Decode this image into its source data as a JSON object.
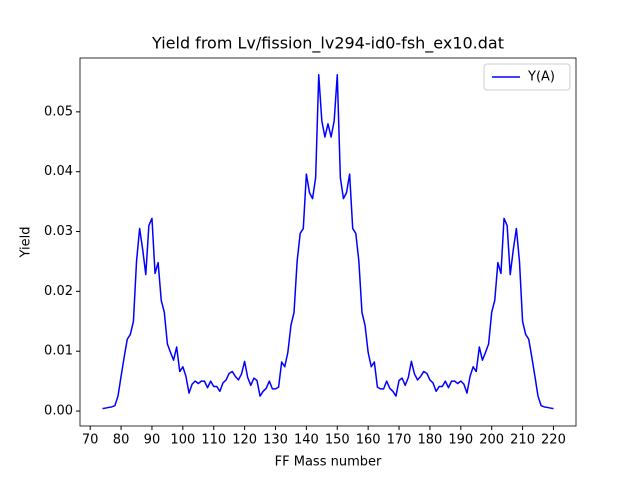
{
  "chart_data": {
    "type": "line",
    "title": "Yield from  Lv/fission_lv294-id0-fsh_ex10.dat",
    "xlabel": "FF Mass number",
    "ylabel": "Yield",
    "x": [
      74,
      75,
      76,
      77,
      78,
      79,
      80,
      81,
      82,
      83,
      84,
      85,
      86,
      87,
      88,
      89,
      90,
      91,
      92,
      93,
      94,
      95,
      96,
      97,
      98,
      99,
      100,
      101,
      102,
      103,
      104,
      105,
      106,
      107,
      108,
      109,
      110,
      111,
      112,
      113,
      114,
      115,
      116,
      117,
      118,
      119,
      120,
      121,
      122,
      123,
      124,
      125,
      126,
      127,
      128,
      129,
      130,
      131,
      132,
      133,
      134,
      135,
      136,
      137,
      138,
      139,
      140,
      141,
      142,
      143,
      144,
      145,
      146,
      147,
      148,
      149,
      150,
      151,
      152,
      153,
      154,
      155,
      156,
      157,
      158,
      159,
      160,
      161,
      162,
      163,
      164,
      165,
      166,
      167,
      168,
      169,
      170,
      171,
      172,
      173,
      174,
      175,
      176,
      177,
      178,
      179,
      180,
      181,
      182,
      183,
      184,
      185,
      186,
      187,
      188,
      189,
      190,
      191,
      192,
      193,
      194,
      195,
      196,
      197,
      198,
      199,
      200,
      201,
      202,
      203,
      204,
      205,
      206,
      207,
      208,
      209,
      210,
      211,
      212,
      213,
      214,
      215,
      216,
      217,
      218,
      219,
      220
    ],
    "series": [
      {
        "name": "Y(A)",
        "color": "#0000ff",
        "values": [
          0.0004,
          0.0005,
          0.0006,
          0.0007,
          0.0009,
          0.0025,
          0.0058,
          0.009,
          0.012,
          0.0128,
          0.015,
          0.025,
          0.0305,
          0.027,
          0.0228,
          0.031,
          0.0322,
          0.023,
          0.0248,
          0.0185,
          0.0165,
          0.0112,
          0.0098,
          0.0085,
          0.0107,
          0.0066,
          0.0074,
          0.0058,
          0.003,
          0.0045,
          0.005,
          0.0046,
          0.005,
          0.005,
          0.0039,
          0.005,
          0.0041,
          0.0041,
          0.0033,
          0.0047,
          0.0052,
          0.0063,
          0.0066,
          0.0058,
          0.0052,
          0.0062,
          0.0083,
          0.0056,
          0.0043,
          0.0055,
          0.0051,
          0.0025,
          0.0033,
          0.0038,
          0.005,
          0.0037,
          0.0037,
          0.004,
          0.0082,
          0.0074,
          0.0098,
          0.0143,
          0.0165,
          0.025,
          0.0297,
          0.0305,
          0.0396,
          0.0365,
          0.0355,
          0.039,
          0.0562,
          0.0485,
          0.0458,
          0.048,
          0.0458,
          0.0485,
          0.0562,
          0.039,
          0.0355,
          0.0365,
          0.0396,
          0.0305,
          0.0297,
          0.025,
          0.0165,
          0.0143,
          0.0098,
          0.0074,
          0.0082,
          0.004,
          0.0037,
          0.0037,
          0.005,
          0.0038,
          0.0033,
          0.0025,
          0.0051,
          0.0055,
          0.0043,
          0.0056,
          0.0083,
          0.0062,
          0.0052,
          0.0058,
          0.0066,
          0.0063,
          0.0052,
          0.0047,
          0.0033,
          0.0041,
          0.0041,
          0.005,
          0.0039,
          0.005,
          0.005,
          0.0046,
          0.005,
          0.0045,
          0.003,
          0.0058,
          0.0074,
          0.0066,
          0.0107,
          0.0085,
          0.0098,
          0.0112,
          0.0165,
          0.0185,
          0.0248,
          0.023,
          0.0322,
          0.031,
          0.0228,
          0.027,
          0.0305,
          0.025,
          0.015,
          0.0128,
          0.012,
          0.009,
          0.0058,
          0.0025,
          0.0009,
          0.0007,
          0.0006,
          0.0005,
          0.0004
        ]
      }
    ],
    "xlim": [
      66.7,
      227.3
    ],
    "ylim": [
      -0.0025,
      0.059
    ],
    "xticks": [
      70,
      80,
      90,
      100,
      110,
      120,
      130,
      140,
      150,
      160,
      170,
      180,
      190,
      200,
      210,
      220
    ],
    "yticks": [
      {
        "value": 0,
        "label": "0.00"
      },
      {
        "value": 0.01,
        "label": "0.01"
      },
      {
        "value": 0.02,
        "label": "0.02"
      },
      {
        "value": 0.03,
        "label": "0.03"
      },
      {
        "value": 0.04,
        "label": "0.04"
      },
      {
        "value": 0.05,
        "label": "0.05"
      }
    ],
    "legend": "upper right",
    "grid": false
  }
}
